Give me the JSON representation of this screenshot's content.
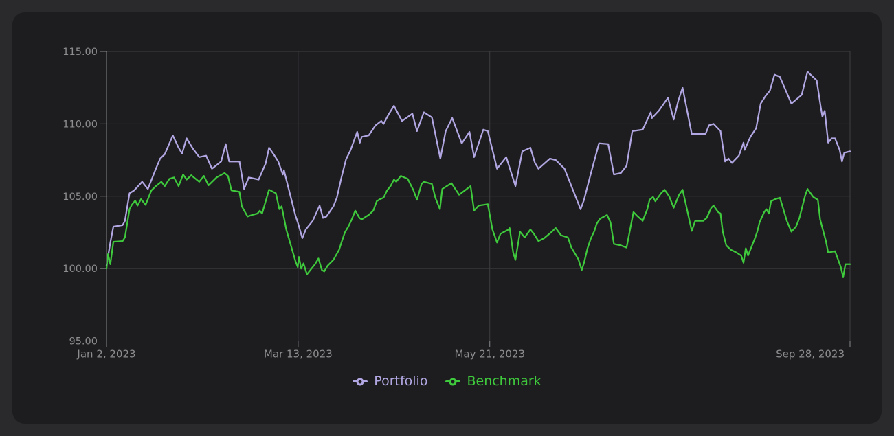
{
  "app": {
    "background": "#2a2a2c",
    "panel_background": "#1d1d1f",
    "grid_color": "#3e3e42",
    "axis_color": "#85868a",
    "label_color": "#8d8d90"
  },
  "chart_data": {
    "type": "line",
    "title": "",
    "xlabel": "",
    "ylabel": "",
    "grid": true,
    "x_axis": {
      "unit": "trading-day index",
      "range": [
        0,
        194
      ],
      "tick_positions": [
        0,
        50,
        100,
        194
      ],
      "tick_labels": [
        "Jan 2, 2023",
        "Mar 13, 2023",
        "May 21, 2023",
        "Sep 28, 2023"
      ]
    },
    "y_axis": {
      "range": [
        95,
        115
      ],
      "tick_values": [
        95,
        100,
        105,
        110,
        115
      ],
      "tick_labels": [
        "95.00",
        "100.00",
        "105.00",
        "110.00",
        "115.00"
      ]
    },
    "legend": {
      "position": "bottom-center"
    },
    "series": [
      {
        "name": "Portfolio",
        "color": "#b2a7e2",
        "points": [
          [
            0,
            100.2
          ],
          [
            1,
            101.8
          ],
          [
            1.8,
            102.9
          ],
          [
            4.2,
            103.0
          ],
          [
            4.8,
            103.3
          ],
          [
            6,
            105.2
          ],
          [
            7.2,
            105.4
          ],
          [
            9.3,
            106.0
          ],
          [
            10.8,
            105.5
          ],
          [
            12.9,
            106.9
          ],
          [
            14,
            107.6
          ],
          [
            15.2,
            107.9
          ],
          [
            17.3,
            109.2
          ],
          [
            18.8,
            108.35
          ],
          [
            19.7,
            107.95
          ],
          [
            20.9,
            109.0
          ],
          [
            22.5,
            108.3
          ],
          [
            24.2,
            107.7
          ],
          [
            26,
            107.8
          ],
          [
            27.5,
            106.9
          ],
          [
            29.9,
            107.4
          ],
          [
            31.1,
            108.6
          ],
          [
            32,
            107.4
          ],
          [
            34.7,
            107.4
          ],
          [
            35.9,
            105.5
          ],
          [
            37.1,
            106.3
          ],
          [
            39.7,
            106.15
          ],
          [
            41.5,
            107.25
          ],
          [
            42.4,
            108.35
          ],
          [
            43.6,
            107.9
          ],
          [
            44.8,
            107.4
          ],
          [
            46,
            106.5
          ],
          [
            46.3,
            106.8
          ],
          [
            49.3,
            103.65
          ],
          [
            49.9,
            103.2
          ],
          [
            51.1,
            102.1
          ],
          [
            52,
            102.7
          ],
          [
            53.8,
            103.3
          ],
          [
            55.6,
            104.35
          ],
          [
            56.5,
            103.5
          ],
          [
            57.4,
            103.6
          ],
          [
            59.2,
            104.3
          ],
          [
            60.1,
            104.9
          ],
          [
            61.3,
            106.3
          ],
          [
            62.5,
            107.55
          ],
          [
            63.7,
            108.2
          ],
          [
            65.4,
            109.45
          ],
          [
            66.1,
            108.7
          ],
          [
            66.6,
            109.1
          ],
          [
            68.4,
            109.2
          ],
          [
            70.2,
            109.9
          ],
          [
            71.7,
            110.2
          ],
          [
            72.3,
            110.0
          ],
          [
            73.5,
            110.6
          ],
          [
            75,
            111.25
          ],
          [
            77.1,
            110.2
          ],
          [
            79.8,
            110.7
          ],
          [
            81,
            109.5
          ],
          [
            82.8,
            110.8
          ],
          [
            84.9,
            110.45
          ],
          [
            87.1,
            107.6
          ],
          [
            88.5,
            109.5
          ],
          [
            90.2,
            110.4
          ],
          [
            92.7,
            108.65
          ],
          [
            94.7,
            109.45
          ],
          [
            95.9,
            107.7
          ],
          [
            98.3,
            109.6
          ],
          [
            99.5,
            109.5
          ],
          [
            101.9,
            106.9
          ],
          [
            104.3,
            107.7
          ],
          [
            106.7,
            105.7
          ],
          [
            108.5,
            108.1
          ],
          [
            110.6,
            108.35
          ],
          [
            111.8,
            107.3
          ],
          [
            112.7,
            106.9
          ],
          [
            115.7,
            107.6
          ],
          [
            117.2,
            107.5
          ],
          [
            119.5,
            106.9
          ],
          [
            123.7,
            104.1
          ],
          [
            124.6,
            104.75
          ],
          [
            126.4,
            106.6
          ],
          [
            128.5,
            108.65
          ],
          [
            130.9,
            108.6
          ],
          [
            132.4,
            106.5
          ],
          [
            134.2,
            106.6
          ],
          [
            135.7,
            107.1
          ],
          [
            137.2,
            109.5
          ],
          [
            139.9,
            109.6
          ],
          [
            142,
            110.8
          ],
          [
            142.3,
            110.4
          ],
          [
            144.1,
            110.9
          ],
          [
            146.5,
            111.8
          ],
          [
            148,
            110.3
          ],
          [
            149.2,
            111.6
          ],
          [
            150.3,
            112.5
          ],
          [
            152.7,
            109.3
          ],
          [
            156.3,
            109.3
          ],
          [
            157.2,
            109.9
          ],
          [
            158.4,
            110.0
          ],
          [
            160.2,
            109.5
          ],
          [
            161.4,
            107.4
          ],
          [
            162.3,
            107.6
          ],
          [
            163.2,
            107.3
          ],
          [
            165,
            107.8
          ],
          [
            166.2,
            108.7
          ],
          [
            166.5,
            108.2
          ],
          [
            168,
            109.1
          ],
          [
            169.5,
            109.7
          ],
          [
            170.7,
            111.4
          ],
          [
            171.9,
            111.9
          ],
          [
            173.1,
            112.3
          ],
          [
            174.3,
            113.4
          ],
          [
            175.7,
            113.25
          ],
          [
            178.7,
            111.4
          ],
          [
            181.4,
            112.0
          ],
          [
            182.9,
            113.6
          ],
          [
            185.3,
            113.0
          ],
          [
            186.4,
            111.1
          ],
          [
            186.8,
            110.5
          ],
          [
            187.4,
            110.9
          ],
          [
            188.3,
            108.7
          ],
          [
            189.2,
            109.0
          ],
          [
            190.1,
            109.0
          ],
          [
            191.3,
            108.2
          ],
          [
            191.9,
            107.4
          ],
          [
            192.5,
            108.0
          ],
          [
            194,
            108.1
          ]
        ]
      },
      {
        "name": "Benchmark",
        "color": "#3fc93c",
        "points": [
          [
            0,
            100.0
          ],
          [
            0.4,
            101.0
          ],
          [
            1,
            100.3
          ],
          [
            1.8,
            101.85
          ],
          [
            4.2,
            101.9
          ],
          [
            4.8,
            102.15
          ],
          [
            6,
            104.1
          ],
          [
            6.6,
            104.4
          ],
          [
            7.5,
            104.7
          ],
          [
            8.1,
            104.35
          ],
          [
            9,
            104.8
          ],
          [
            10.2,
            104.4
          ],
          [
            11.7,
            105.4
          ],
          [
            12.9,
            105.7
          ],
          [
            14.3,
            106.0
          ],
          [
            15.2,
            105.7
          ],
          [
            16.4,
            106.2
          ],
          [
            17.6,
            106.3
          ],
          [
            18.8,
            105.7
          ],
          [
            20,
            106.5
          ],
          [
            20.9,
            106.15
          ],
          [
            22.1,
            106.45
          ],
          [
            24.2,
            106.0
          ],
          [
            25.4,
            106.4
          ],
          [
            26.6,
            105.75
          ],
          [
            28.7,
            106.3
          ],
          [
            30.8,
            106.6
          ],
          [
            31.7,
            106.4
          ],
          [
            32.6,
            105.4
          ],
          [
            34.7,
            105.3
          ],
          [
            35.3,
            104.3
          ],
          [
            36.8,
            103.6
          ],
          [
            38,
            103.7
          ],
          [
            39.4,
            103.8
          ],
          [
            40,
            104.0
          ],
          [
            40.6,
            103.8
          ],
          [
            42.4,
            105.45
          ],
          [
            44.2,
            105.2
          ],
          [
            45.1,
            104.1
          ],
          [
            45.7,
            104.3
          ],
          [
            46.9,
            102.7
          ],
          [
            48.1,
            101.6
          ],
          [
            49.3,
            100.5
          ],
          [
            49.9,
            100.1
          ],
          [
            50.2,
            100.8
          ],
          [
            50.8,
            100.0
          ],
          [
            51.4,
            100.35
          ],
          [
            52.3,
            99.6
          ],
          [
            53.5,
            100.0
          ],
          [
            54.4,
            100.3
          ],
          [
            55.3,
            100.7
          ],
          [
            56.2,
            99.9
          ],
          [
            56.8,
            99.8
          ],
          [
            57.7,
            100.2
          ],
          [
            59.2,
            100.6
          ],
          [
            60.7,
            101.3
          ],
          [
            61.3,
            101.8
          ],
          [
            62.2,
            102.5
          ],
          [
            63.1,
            102.9
          ],
          [
            64,
            103.4
          ],
          [
            64.9,
            104.0
          ],
          [
            66,
            103.5
          ],
          [
            66.6,
            103.4
          ],
          [
            68.4,
            103.7
          ],
          [
            69.6,
            104.0
          ],
          [
            70.5,
            104.65
          ],
          [
            71.4,
            104.8
          ],
          [
            72.3,
            104.9
          ],
          [
            73.2,
            105.4
          ],
          [
            74.1,
            105.7
          ],
          [
            75,
            106.15
          ],
          [
            75.6,
            106.0
          ],
          [
            76.8,
            106.4
          ],
          [
            78.6,
            106.2
          ],
          [
            80.1,
            105.4
          ],
          [
            81,
            104.75
          ],
          [
            82.2,
            105.85
          ],
          [
            82.8,
            106.0
          ],
          [
            84.9,
            105.85
          ],
          [
            85.8,
            104.9
          ],
          [
            87,
            104.1
          ],
          [
            87.6,
            105.5
          ],
          [
            89.1,
            105.75
          ],
          [
            90,
            105.9
          ],
          [
            92,
            105.1
          ],
          [
            93.5,
            105.4
          ],
          [
            95,
            105.7
          ],
          [
            95.9,
            104.0
          ],
          [
            97.1,
            104.35
          ],
          [
            99.5,
            104.45
          ],
          [
            100.7,
            102.7
          ],
          [
            101.9,
            101.8
          ],
          [
            102.8,
            102.4
          ],
          [
            104.9,
            102.7
          ],
          [
            105.2,
            102.8
          ],
          [
            106.1,
            101.1
          ],
          [
            106.7,
            100.6
          ],
          [
            107.9,
            102.55
          ],
          [
            109.1,
            102.15
          ],
          [
            110.6,
            102.7
          ],
          [
            111.5,
            102.4
          ],
          [
            112.7,
            101.9
          ],
          [
            114.2,
            102.1
          ],
          [
            116,
            102.5
          ],
          [
            117.2,
            102.8
          ],
          [
            118.6,
            102.3
          ],
          [
            120.4,
            102.15
          ],
          [
            121.3,
            101.45
          ],
          [
            123.1,
            100.65
          ],
          [
            124,
            99.9
          ],
          [
            124.6,
            100.4
          ],
          [
            125.5,
            101.4
          ],
          [
            126.4,
            102.1
          ],
          [
            127.3,
            102.6
          ],
          [
            127.9,
            103.1
          ],
          [
            128.8,
            103.45
          ],
          [
            130.6,
            103.7
          ],
          [
            131.5,
            103.2
          ],
          [
            132.4,
            101.7
          ],
          [
            134.2,
            101.6
          ],
          [
            135.7,
            101.45
          ],
          [
            136.6,
            102.7
          ],
          [
            137.5,
            103.9
          ],
          [
            138.4,
            103.65
          ],
          [
            139.9,
            103.3
          ],
          [
            141.1,
            104.1
          ],
          [
            141.7,
            104.75
          ],
          [
            142.6,
            104.95
          ],
          [
            143.2,
            104.65
          ],
          [
            144.7,
            105.2
          ],
          [
            145.6,
            105.45
          ],
          [
            146.8,
            105.0
          ],
          [
            148,
            104.2
          ],
          [
            149.4,
            105.1
          ],
          [
            150.3,
            105.45
          ],
          [
            151.2,
            104.4
          ],
          [
            152.7,
            102.6
          ],
          [
            153.6,
            103.3
          ],
          [
            155.7,
            103.3
          ],
          [
            156.6,
            103.5
          ],
          [
            157.8,
            104.2
          ],
          [
            158.4,
            104.35
          ],
          [
            159.6,
            103.9
          ],
          [
            160.2,
            103.8
          ],
          [
            160.8,
            102.55
          ],
          [
            161.7,
            101.6
          ],
          [
            162.9,
            101.3
          ],
          [
            164.4,
            101.1
          ],
          [
            165.6,
            100.9
          ],
          [
            166.2,
            100.4
          ],
          [
            166.8,
            101.4
          ],
          [
            167.4,
            100.9
          ],
          [
            168.6,
            101.7
          ],
          [
            169.2,
            102.1
          ],
          [
            169.8,
            102.55
          ],
          [
            170.4,
            103.2
          ],
          [
            171.6,
            103.9
          ],
          [
            172.2,
            104.1
          ],
          [
            172.8,
            103.8
          ],
          [
            173.4,
            104.65
          ],
          [
            174.5,
            104.8
          ],
          [
            175.7,
            104.9
          ],
          [
            176.6,
            104.1
          ],
          [
            177.5,
            103.3
          ],
          [
            178.7,
            102.55
          ],
          [
            179.9,
            102.9
          ],
          [
            180.8,
            103.5
          ],
          [
            182.3,
            105.05
          ],
          [
            182.9,
            105.5
          ],
          [
            184.4,
            104.95
          ],
          [
            185.6,
            104.75
          ],
          [
            186.2,
            103.4
          ],
          [
            187.7,
            101.9
          ],
          [
            188.3,
            101.1
          ],
          [
            190.1,
            101.2
          ],
          [
            191.6,
            100.1
          ],
          [
            192.2,
            99.4
          ],
          [
            192.8,
            100.3
          ],
          [
            194,
            100.3
          ]
        ]
      }
    ]
  }
}
